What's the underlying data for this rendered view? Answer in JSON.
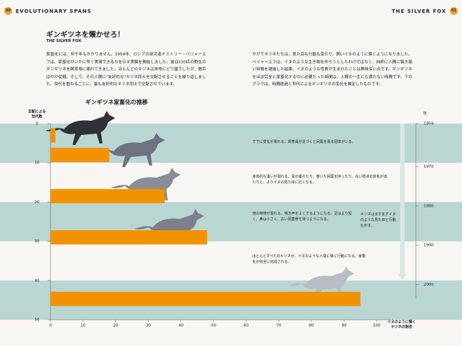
{
  "header": {
    "left_page": "50",
    "left_title": "EVOLUTIONARY SPANS",
    "right_title": "THE SILVER FOX",
    "right_page": "51"
  },
  "article": {
    "title": "ギンギツネを懐かせろ！",
    "subtitle": "THE SILVER FOX",
    "paragraphs": [
      "家畜化には、何千年もかかりません。1959年、ロシアの研究者ドミトリー・ベリャーエフは、家畜化がいかに早く実現できるかを示す実験を開始しました。彼は130匹の野生のギンギツネを飼育場に連れてきました。ほとんどのキツネは非常にどう猛でしたが、数匹はやや従順。そして、その人間に\"友好的な\"キツネ同士を交配させることを繰り返しました。世代を重ねるごとに、最も友好的なキツネ同士で交配させています。",
      "やがてキツネたちは、見た目も行動も変わり、飼いイヌのように懐くようになりました。ベリャーエフは、イヌのような生き物を作ろうとしたわけではなく、純粋に人間に懐き易い特徴を選抜した結果、イヌのような性質が生まれたことは興味深い点です。ギンギツネをほぼ完全に家畜化するのに必要だった時間は、人間の一生にも満たない時間です。下のグラフは、時間経過と世代によるギンギツネの変化を推定したものです。"
    ]
  },
  "chart_data": {
    "type": "hbar",
    "title": "ギンギツネ家畜化の推移",
    "y_label": [
      "交配による",
      "世代数"
    ],
    "x_label": [
      "イヌのように懐く",
      "キツネの割合"
    ],
    "y2_label": "年",
    "y": [
      3,
      8,
      18.5,
      29,
      44.7
    ],
    "values": [
      1.5,
      18,
      35,
      48,
      95
    ],
    "color": "#f39200",
    "xlim": [
      0,
      100
    ],
    "xticks": [
      0,
      10,
      20,
      30,
      40,
      50,
      60,
      70,
      80,
      90,
      100
    ],
    "ylim": [
      0,
      50
    ],
    "yticks": [
      0,
      10,
      20,
      30,
      40,
      50
    ],
    "y2lim": [
      1959,
      2009
    ],
    "y2ticks": [
      1959,
      1970,
      1980,
      1990,
      2000
    ],
    "annotations": [
      "すでに変化が現れる。飼育員が近づくと尻尾を振る個体がいる。",
      "身体的な違いが現れる。耳が垂れたり、巻いた尻尾を持ったり、白い斑点の体毛が出たりと、よりイヌの見た目に近くなる。",
      "他の特徴が現れる。鳴き声をよくするようになる。足はより短く、鼻は小さく、広い頭蓋骨を持つようになる。",
      "ほとんどすべてのキツネが、イヌのような人間に懐く行動になる。家畜化が完全に完成される。",
      "キツネはますますイヌのような見た目と行動を示す。"
    ],
    "band_color": "#b9d6d3"
  }
}
